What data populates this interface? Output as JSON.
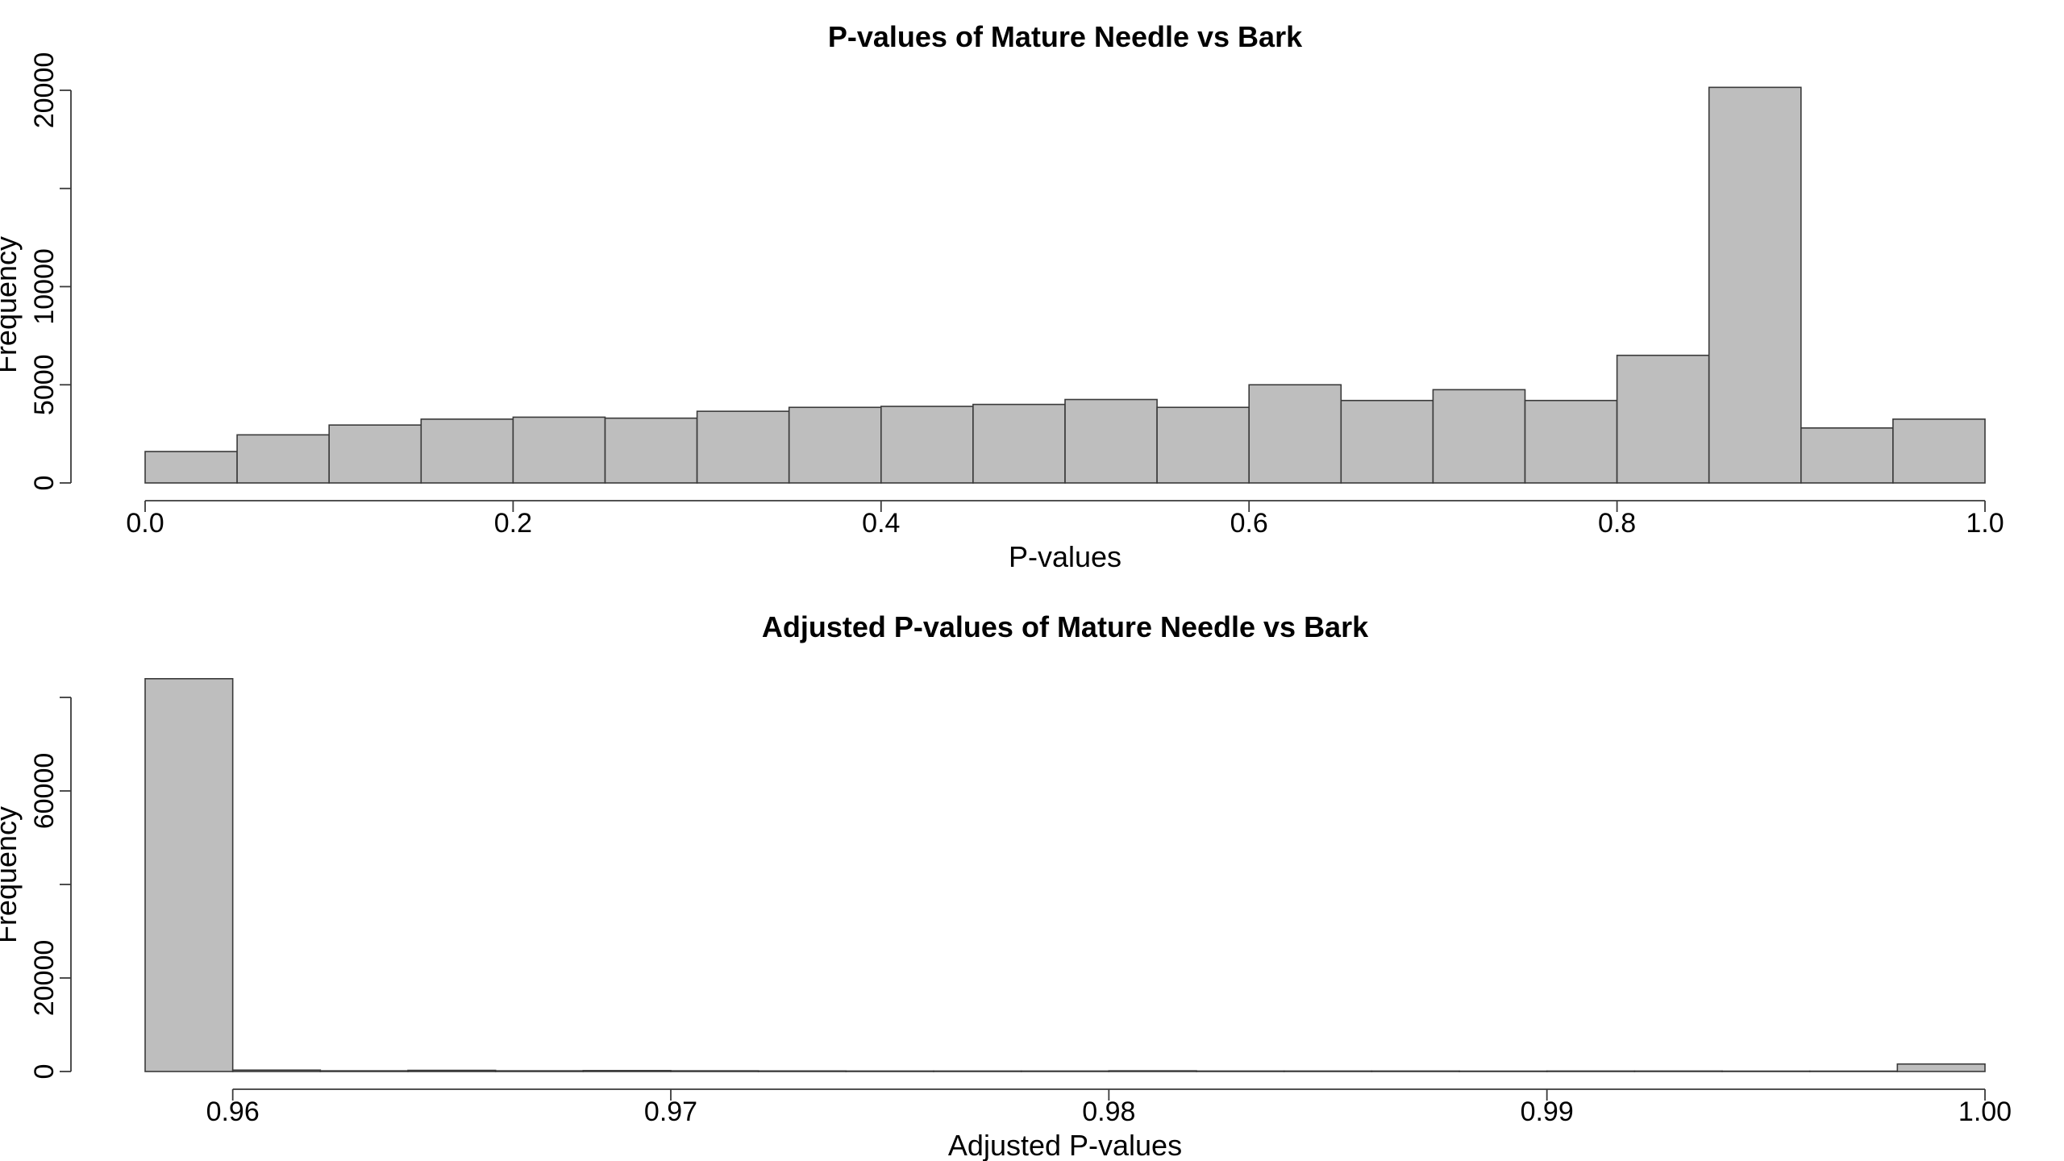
{
  "chart_data": [
    {
      "type": "bar",
      "title": "P-values of Mature Needle vs Bark",
      "xlabel": "P-values",
      "ylabel": "Frequency",
      "xlim": [
        0.0,
        1.0
      ],
      "ylim": [
        0,
        20000
      ],
      "x_ticks": [
        0.0,
        0.2,
        0.4,
        0.6,
        0.8,
        1.0
      ],
      "x_tick_labels": [
        "0.0",
        "0.2",
        "0.4",
        "0.6",
        "0.8",
        "1.0"
      ],
      "y_ticks": [
        0,
        5000,
        10000,
        15000,
        20000
      ],
      "y_tick_labels": [
        "0",
        "5000",
        "10000",
        "",
        "20000"
      ],
      "bin_edges": [
        0.0,
        0.05,
        0.1,
        0.15,
        0.2,
        0.25,
        0.3,
        0.35,
        0.4,
        0.45,
        0.5,
        0.55,
        0.6,
        0.65,
        0.7,
        0.75,
        0.8,
        0.85,
        0.9,
        0.95,
        1.0
      ],
      "values": [
        1600,
        2450,
        2950,
        3250,
        3350,
        3300,
        3650,
        3850,
        3900,
        4000,
        4250,
        3850,
        5000,
        4200,
        4750,
        4200,
        6500,
        20150,
        2800,
        3250
      ],
      "grid": false,
      "colors": {
        "bar_fill": "#bebebe",
        "bar_edge": "#3a3a3a"
      }
    },
    {
      "type": "bar",
      "title": "Adjusted P-values of Mature Needle vs Bark",
      "xlabel": "Adjusted P-values",
      "ylabel": "Frequency",
      "xlim": [
        0.958,
        1.0
      ],
      "ylim": [
        0,
        80000
      ],
      "x_ticks": [
        0.96,
        0.97,
        0.98,
        0.99,
        1.0
      ],
      "x_tick_labels": [
        "0.96",
        "0.97",
        "0.98",
        "0.99",
        "1.00"
      ],
      "y_ticks": [
        0,
        20000,
        40000,
        60000,
        80000
      ],
      "y_tick_labels": [
        "0",
        "20000",
        "",
        "60000",
        ""
      ],
      "bin_edges": [
        0.958,
        0.96,
        0.962,
        0.964,
        0.966,
        0.968,
        0.97,
        0.972,
        0.974,
        0.976,
        0.978,
        0.98,
        0.982,
        0.984,
        0.986,
        0.988,
        0.99,
        0.992,
        0.994,
        0.996,
        0.998,
        1.0
      ],
      "values": [
        84000,
        300,
        150,
        250,
        150,
        200,
        150,
        120,
        100,
        100,
        100,
        150,
        100,
        100,
        100,
        80,
        100,
        100,
        80,
        80,
        1600
      ],
      "grid": false,
      "colors": {
        "bar_fill": "#bebebe",
        "bar_edge": "#3a3a3a"
      }
    }
  ]
}
